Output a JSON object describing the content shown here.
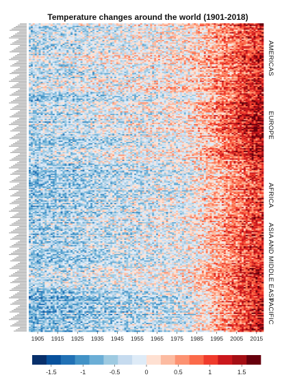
{
  "chart_data": {
    "type": "heatmap",
    "title": "Temperature changes around the world (1901-2018)",
    "x_range": [
      1901,
      2018
    ],
    "x_ticks": [
      1905,
      1915,
      1925,
      1935,
      1945,
      1955,
      1965,
      1975,
      1985,
      1995,
      2005,
      2015
    ],
    "value_range": [
      -1.8,
      1.8
    ],
    "colorbar_ticks": [
      -1.5,
      -1,
      -0.5,
      0,
      0.5,
      1,
      1.5
    ],
    "colorbar_tick_labels": [
      "-1.5",
      "-1",
      "-0.5",
      "0",
      "0.5",
      "1",
      "1.5"
    ],
    "colorscale": [
      "#08306b",
      "#08519c",
      "#2171b5",
      "#4292c6",
      "#6baed6",
      "#9ecae1",
      "#c6dbef",
      "#deebf7",
      "#fee0d2",
      "#fcbba1",
      "#fc9272",
      "#fb6a4a",
      "#ef3b2c",
      "#cb181d",
      "#a50f15",
      "#67000d"
    ],
    "regions": [
      {
        "label": "AMERICAS",
        "rows": 55,
        "base_early": -0.35,
        "base_late": 1.2
      },
      {
        "label": "EUROPE",
        "rows": 50,
        "base_early": -0.45,
        "base_late": 1.45
      },
      {
        "label": "AFRICA",
        "rows": 60,
        "base_early": -0.55,
        "base_late": 1.1
      },
      {
        "label": "ASIA AND MIDDLE EAST",
        "rows": 45,
        "base_early": -0.5,
        "base_late": 1.2
      },
      {
        "label": "PACIFIC",
        "rows": 32,
        "base_early": -0.7,
        "base_late": 1.35
      }
    ],
    "row_label_count": 242,
    "legend": "colorbar bottom"
  }
}
